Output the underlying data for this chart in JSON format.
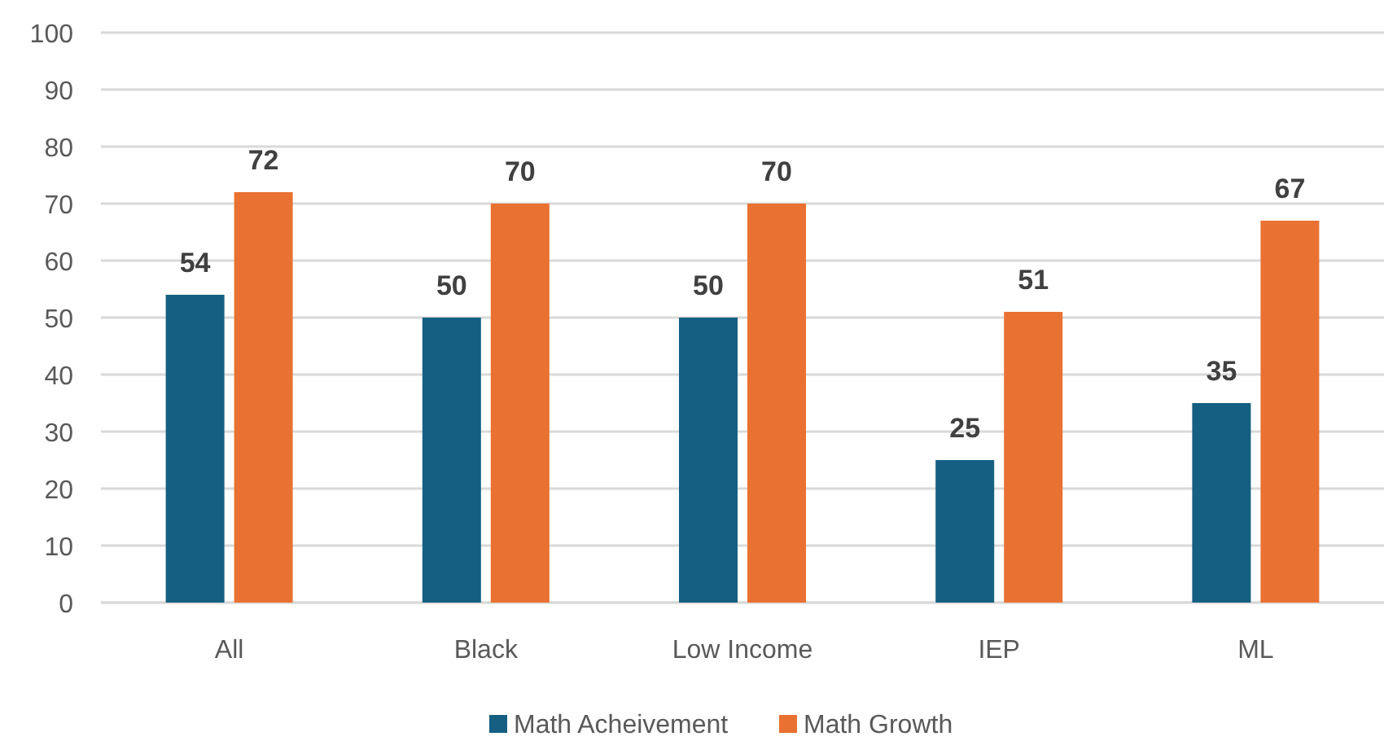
{
  "chart_data": {
    "type": "bar",
    "categories": [
      "All",
      "Black",
      "Low Income",
      "IEP",
      "ML"
    ],
    "series": [
      {
        "name": "Math Acheivement",
        "color": "#155f82",
        "values": [
          54,
          50,
          50,
          25,
          35
        ]
      },
      {
        "name": "Math Growth",
        "color": "#e97132",
        "values": [
          72,
          70,
          70,
          51,
          67
        ]
      }
    ],
    "ylim": [
      0,
      100
    ],
    "yticks": [
      0,
      10,
      20,
      30,
      40,
      50,
      60,
      70,
      80,
      90,
      100
    ],
    "grid": "y",
    "legend": "bottom",
    "data_labels": true
  }
}
